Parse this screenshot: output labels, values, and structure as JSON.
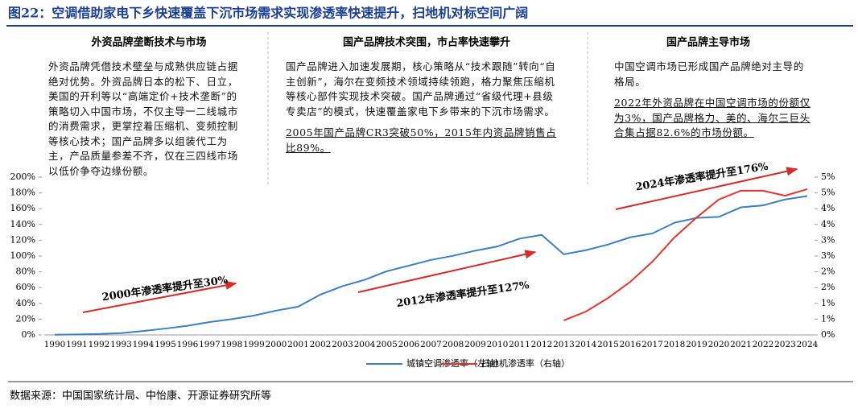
{
  "title": "图22：空调借助家电下乡快速覆盖下沉市场需求实现渗透率快速提升，扫地机对标空间广阔",
  "panels": [
    {
      "heading": "外资品牌垄断技术与市场",
      "text": "外资品牌凭借技术壁垒与成熟供应链占据绝对优势。外资品牌日本的松下、日立，美国的开利等以“高端定价+技术垄断”的策略切入中国市场，不仅主导一二线城市的消费需求，更掌控着压缩机、变频控制等核心技术；国产品牌多以组装代工为主，产品质量参差不齐，仅在三四线市场以低价争夺边缘份额。"
    },
    {
      "heading": "国产品牌技术突围，市占率快速攀升",
      "text": "国产品牌进入加速发展期，核心策略从“技术跟随”转向“自主创新”，海尔在变频技术领域持续领跑，格力聚焦压缩机等核心部件实现技术突破。国产品牌通过“省级代理+县级专卖店”的模式，快速覆盖家电下乡带来的下沉市场需求。",
      "highlight": "2005年国产品牌CR3突破50%，2015年内资品牌销售占比89%。"
    },
    {
      "heading": "国产品牌主导市场",
      "text": "中国空调市场已形成国产品牌绝对主导的格局。",
      "highlight": "2022年外资品牌在中国空调市场的份额仅为3%，国产品牌格力、美的、海尔三巨头合集占据82.6%的市场份额。"
    }
  ],
  "chart_data": {
    "type": "line",
    "categories": [
      "1990",
      "1991",
      "1992",
      "1993",
      "1994",
      "1995",
      "1996",
      "1997",
      "1998",
      "1999",
      "2000",
      "2001",
      "2002",
      "2003",
      "2004",
      "2005",
      "2006",
      "2007",
      "2008",
      "2009",
      "2010",
      "2011",
      "2012",
      "2013",
      "2014",
      "2015",
      "2016",
      "2017",
      "2018",
      "2019",
      "2020",
      "2021",
      "2022",
      "2023",
      "2024"
    ],
    "series": [
      {
        "name": "城镇空调渗透率（左轴）",
        "color": "#3d7fc4",
        "values": [
          0.3,
          0.6,
          1.2,
          2.3,
          5,
          8.1,
          11.6,
          16.3,
          20,
          24.5,
          30.8,
          35.8,
          51.1,
          61.8,
          69.8,
          80.7,
          87.8,
          95.1,
          100.3,
          106.8,
          112.1,
          122,
          126.8,
          102.2,
          107.4,
          114.6,
          123.7,
          128.6,
          142.2,
          148.3,
          149.6,
          161.7,
          164.2,
          171.7,
          176
        ]
      },
      {
        "name": "扫地机渗透率（右轴）",
        "color": "#e8332e",
        "axis": "y2",
        "values": [
          null,
          null,
          null,
          null,
          null,
          null,
          null,
          null,
          null,
          null,
          null,
          null,
          null,
          null,
          null,
          null,
          null,
          null,
          null,
          null,
          null,
          null,
          null,
          0.46,
          0.74,
          1.17,
          1.68,
          2.32,
          3.09,
          3.72,
          4.29,
          4.57,
          4.57,
          4.41,
          4.62
        ]
      }
    ],
    "ylim": [
      0,
      200
    ],
    "yticks": [
      {
        "value": 0,
        "label": "0%"
      },
      {
        "value": 20,
        "label": "20%"
      },
      {
        "value": 40,
        "label": "40%"
      },
      {
        "value": 60,
        "label": "60%"
      },
      {
        "value": 80,
        "label": "80%"
      },
      {
        "value": 100,
        "label": "100%"
      },
      {
        "value": 120,
        "label": "120%"
      },
      {
        "value": 140,
        "label": "140%"
      },
      {
        "value": 160,
        "label": "160%"
      },
      {
        "value": 180,
        "label": "180%"
      },
      {
        "value": 200,
        "label": "200%"
      }
    ],
    "y2lim": [
      0,
      5
    ],
    "y2ticks": [
      {
        "value": 0,
        "label": "0%"
      },
      {
        "value": 0.5,
        "label": "1%"
      },
      {
        "value": 1,
        "label": "1%"
      },
      {
        "value": 1.5,
        "label": "2%"
      },
      {
        "value": 2,
        "label": "2%"
      },
      {
        "value": 2.5,
        "label": "3%"
      },
      {
        "value": 3,
        "label": "3%"
      },
      {
        "value": 3.5,
        "label": "4%"
      },
      {
        "value": 4,
        "label": "4%"
      },
      {
        "value": 4.5,
        "label": "5%"
      },
      {
        "value": 5,
        "label": "5%"
      }
    ],
    "annotations": [
      "2000年渗透率提升至30%",
      "2012年渗透率提升至127%",
      "2024年渗透率提升至176%"
    ]
  },
  "source": "数据来源：中国国家统计局、中怡康、开源证券研究所等"
}
